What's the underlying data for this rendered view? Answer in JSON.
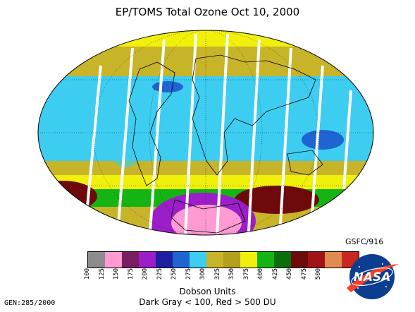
{
  "title": "EP/TOMS Total Ozone Oct 10, 2000",
  "credit": "GSFC/916",
  "colorbar": {
    "units_label": "Dobson Units",
    "note": "Dark Gray < 100, Red > 500 DU",
    "ticks": [
      "100",
      "125",
      "150",
      "175",
      "200",
      "225",
      "250",
      "275",
      "300",
      "325",
      "350",
      "375",
      "400",
      "425",
      "450",
      "475",
      "500"
    ],
    "colors": [
      "#8c8c8c",
      "#ff9ad2",
      "#7a1e62",
      "#9b1ec8",
      "#1e1ea0",
      "#1e64d2",
      "#3ccdf0",
      "#c8b428",
      "#b4a01e",
      "#f0f00a",
      "#14b414",
      "#0a6e0a",
      "#6e0a0a",
      "#a01414",
      "#e08c50",
      "#c8281e"
    ]
  },
  "gen": "GEN:285/2000",
  "logo_text": "NASA"
}
